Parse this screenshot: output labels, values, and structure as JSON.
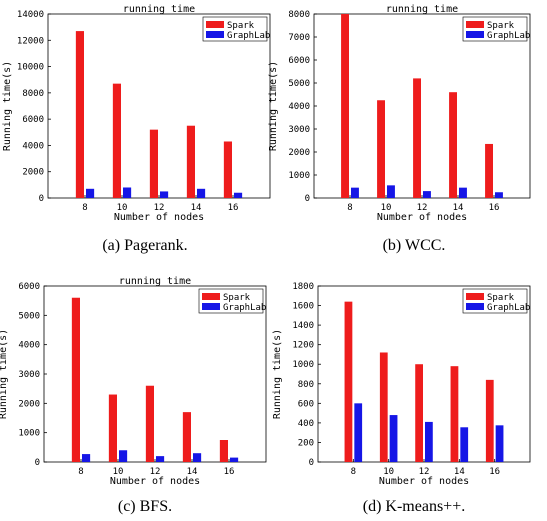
{
  "captions": [
    "(a)  Pagerank.",
    "(b)  WCC.",
    "(c)  BFS.",
    "(d)  K-means++."
  ],
  "chart_data": [
    {
      "type": "bar",
      "title": "running time",
      "xlabel": "Number of nodes",
      "ylabel": "Running time(s)",
      "categories": [
        "8",
        "10",
        "12",
        "14",
        "16"
      ],
      "ylim": [
        0,
        14000
      ],
      "yticks": [
        0,
        2000,
        4000,
        6000,
        8000,
        10000,
        12000,
        14000
      ],
      "legend_position": "top-right",
      "series": [
        {
          "name": "Spark",
          "color": "#ee1c1c",
          "values": [
            12700,
            8700,
            5200,
            5500,
            4300
          ]
        },
        {
          "name": "GraphLab",
          "color": "#1616e6",
          "values": [
            700,
            800,
            500,
            700,
            400
          ]
        }
      ]
    },
    {
      "type": "bar",
      "title": "running time",
      "xlabel": "Number of nodes",
      "ylabel": "Running time(s)",
      "categories": [
        "8",
        "10",
        "12",
        "14",
        "16"
      ],
      "ylim": [
        0,
        8000
      ],
      "yticks": [
        0,
        1000,
        2000,
        3000,
        4000,
        5000,
        6000,
        7000,
        8000
      ],
      "legend_position": "top-right",
      "series": [
        {
          "name": "Spark",
          "color": "#ee1c1c",
          "values": [
            8000,
            4250,
            5200,
            4600,
            2350
          ]
        },
        {
          "name": "GraphLab",
          "color": "#1616e6",
          "values": [
            450,
            550,
            300,
            450,
            250
          ]
        }
      ]
    },
    {
      "type": "bar",
      "title": "running time",
      "xlabel": "Number of nodes",
      "ylabel": "Running time(s)",
      "categories": [
        "8",
        "10",
        "12",
        "14",
        "16"
      ],
      "ylim": [
        0,
        6000
      ],
      "yticks": [
        0,
        1000,
        2000,
        3000,
        4000,
        5000,
        6000
      ],
      "legend_position": "top-right",
      "series": [
        {
          "name": "Spark",
          "color": "#ee1c1c",
          "values": [
            5600,
            2300,
            2600,
            1700,
            750
          ]
        },
        {
          "name": "GraphLab",
          "color": "#1616e6",
          "values": [
            270,
            400,
            200,
            300,
            150
          ]
        }
      ]
    },
    {
      "type": "bar",
      "title": "",
      "xlabel": "Number of nodes",
      "ylabel": "Running time(s)",
      "categories": [
        "8",
        "10",
        "12",
        "14",
        "16"
      ],
      "ylim": [
        0,
        1800
      ],
      "yticks": [
        0,
        200,
        400,
        600,
        800,
        1000,
        1200,
        1400,
        1600,
        1800
      ],
      "legend_position": "top-right",
      "series": [
        {
          "name": "Spark",
          "color": "#ee1c1c",
          "values": [
            1640,
            1120,
            1000,
            980,
            840
          ]
        },
        {
          "name": "GraphLab",
          "color": "#1616e6",
          "values": [
            600,
            480,
            410,
            355,
            375
          ]
        }
      ]
    }
  ]
}
